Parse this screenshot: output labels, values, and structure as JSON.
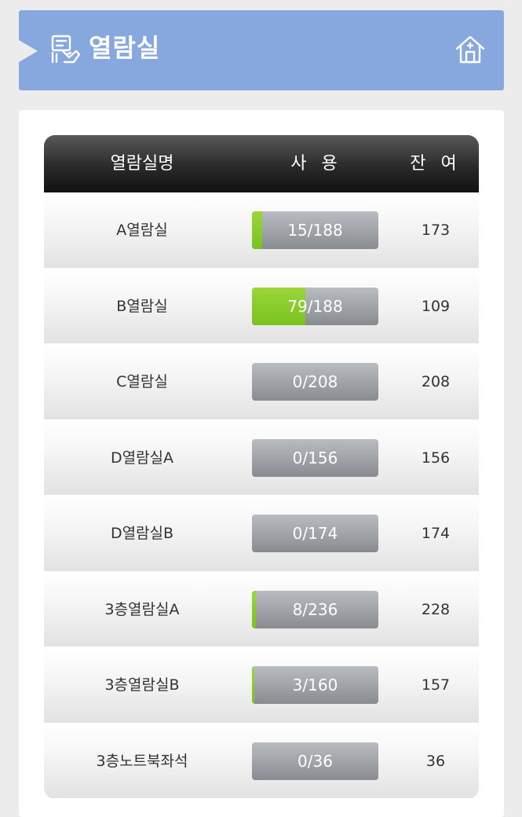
{
  "header": {
    "title": "열람실",
    "title_icon": "reading-room-icon",
    "home_icon": "home-icon",
    "background_color": "#87a8de"
  },
  "table": {
    "columns": [
      "열람실명",
      "사 용",
      "잔 여"
    ],
    "rows": [
      {
        "name": "A열람실",
        "usage": "15/188",
        "used": 15,
        "total": 188,
        "remaining": "173"
      },
      {
        "name": "B열람실",
        "usage": "79/188",
        "used": 79,
        "total": 188,
        "remaining": "109"
      },
      {
        "name": "C열람실",
        "usage": "0/208",
        "used": 0,
        "total": 208,
        "remaining": "208"
      },
      {
        "name": "D열람실A",
        "usage": "0/156",
        "used": 0,
        "total": 156,
        "remaining": "156"
      },
      {
        "name": "D열람실B",
        "usage": "0/174",
        "used": 0,
        "total": 174,
        "remaining": "174"
      },
      {
        "name": "3층열람실A",
        "usage": "8/236",
        "used": 8,
        "total": 236,
        "remaining": "228"
      },
      {
        "name": "3층열람실B",
        "usage": "3/160",
        "used": 3,
        "total": 160,
        "remaining": "157"
      },
      {
        "name": "3층노트북좌석",
        "usage": "0/36",
        "used": 0,
        "total": 36,
        "remaining": "36"
      }
    ],
    "fill_color": "#7ac21f"
  }
}
